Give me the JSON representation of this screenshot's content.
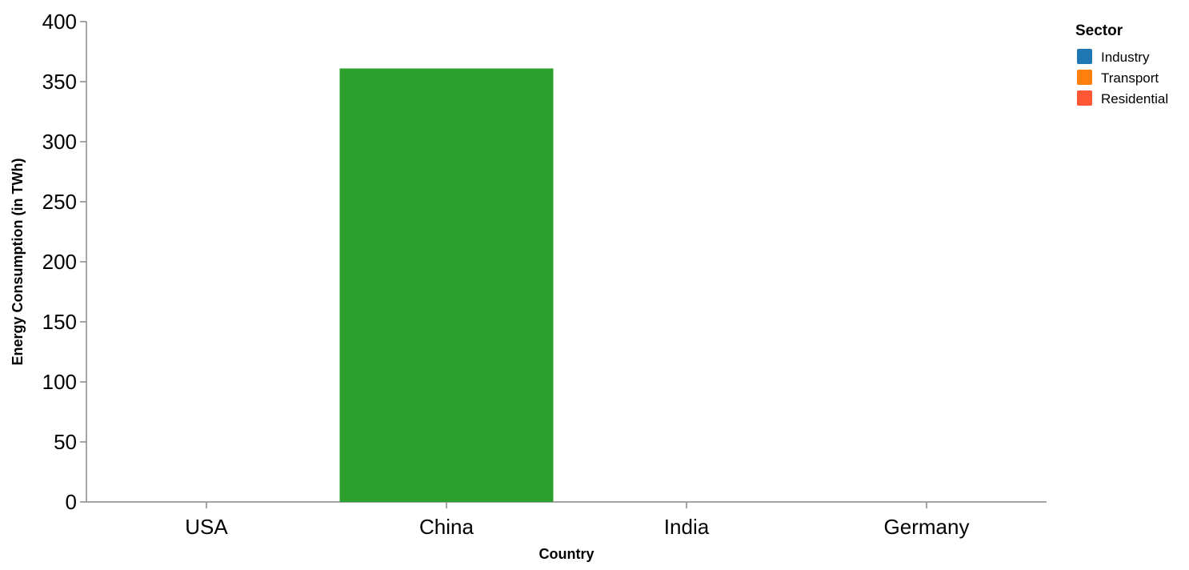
{
  "chart_data": {
    "type": "bar",
    "categories": [
      "USA",
      "China",
      "India",
      "Germany"
    ],
    "series": [
      {
        "name": "Industry",
        "values": [
          null,
          null,
          null,
          null
        ],
        "color": "#1f77b4"
      },
      {
        "name": "Transport",
        "values": [
          null,
          null,
          null,
          null
        ],
        "color": "#ff7f0e"
      },
      {
        "name": "Residential",
        "values": [
          null,
          null,
          null,
          null
        ],
        "color": "#ff5733"
      }
    ],
    "visible_bars": [
      {
        "category": "China",
        "value": 361,
        "color": "#2ca02c"
      }
    ],
    "xlabel": "Country",
    "ylabel": "Energy Consumption (in TWh)",
    "ylim": [
      0,
      400
    ],
    "yticks": [
      0,
      50,
      100,
      150,
      200,
      250,
      300,
      350,
      400
    ],
    "legend": {
      "title": "Sector",
      "placement": "top-right"
    },
    "grid": false
  }
}
